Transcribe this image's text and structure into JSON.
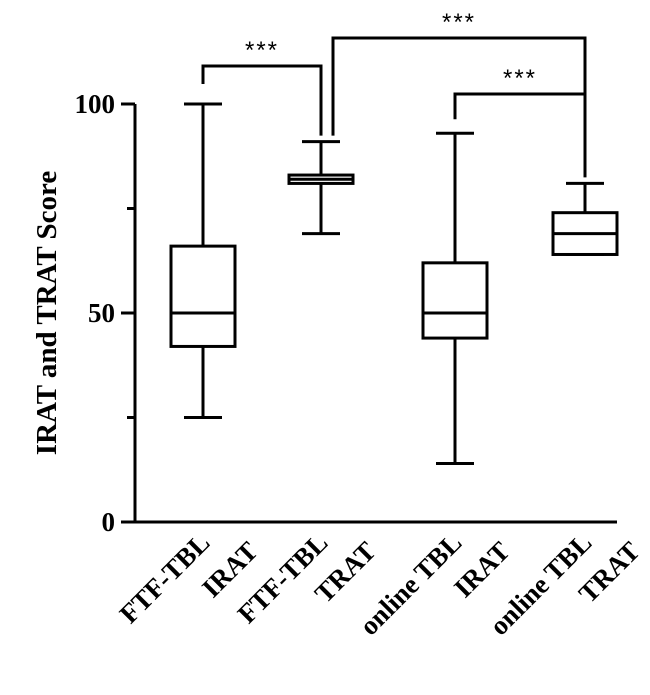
{
  "chart_data": {
    "type": "box",
    "ylabel": "IRAT and TRAT Score",
    "xlabel": "",
    "title": "",
    "ylim": [
      0,
      100
    ],
    "yticks_major": [
      0,
      50,
      100
    ],
    "yticks_minor": [
      25,
      75
    ],
    "grid": false,
    "legend": "none",
    "categories": [
      [
        "FTF-TBL",
        "IRAT"
      ],
      [
        "FTF-TBL",
        "TRAT"
      ],
      [
        "online TBL",
        "IRAT"
      ],
      [
        "online TBL",
        "TRAT"
      ]
    ],
    "boxes": [
      {
        "min": 25,
        "q1": 42,
        "median": 50,
        "q3": 66,
        "max": 100
      },
      {
        "min": 69,
        "q1": 81,
        "median": 82,
        "q3": 83,
        "max": 91
      },
      {
        "min": 14,
        "q1": 44,
        "median": 50,
        "q3": 62,
        "max": 93
      },
      {
        "min": 64,
        "q1": 64,
        "median": 69,
        "q3": 74,
        "max": 81
      }
    ],
    "significance": [
      {
        "from": 0,
        "to": 1,
        "label": "***"
      },
      {
        "from": 2,
        "to": 3,
        "label": "***"
      },
      {
        "from": 1,
        "to": 3,
        "label": "***"
      }
    ]
  }
}
